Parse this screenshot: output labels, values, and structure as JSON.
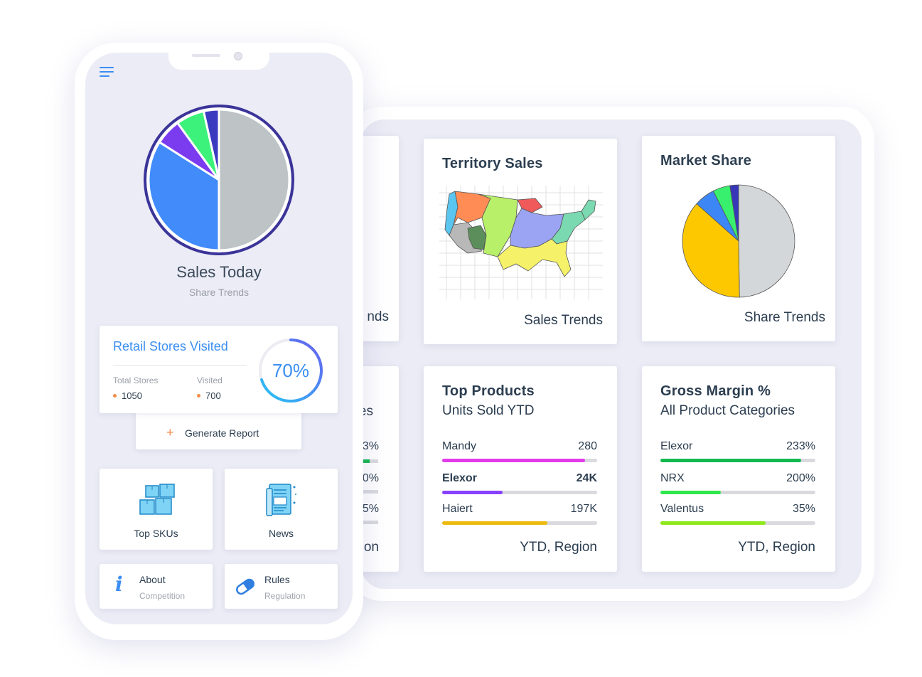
{
  "phone": {
    "title": "Sales Today",
    "subtitle": "Share Trends",
    "pie": [
      {
        "label": "grey",
        "value": 50,
        "color": "#bec3c6"
      },
      {
        "label": "blue",
        "value": 34,
        "color": "#418bfb"
      },
      {
        "label": "purple",
        "value": 6,
        "color": "#7b3cf0"
      },
      {
        "label": "green",
        "value": 6.5,
        "color": "#3cf27a"
      },
      {
        "label": "navy",
        "value": 3.5,
        "color": "#3b3bc0"
      }
    ],
    "pie_ring_color": "#3b3499",
    "retail": {
      "title": "Retail Stores Visited",
      "total_label": "Total Stores",
      "total_value": "1050",
      "visited_label": "Visited",
      "visited_value": "700",
      "percent_text": "70%",
      "percent": 0.7
    },
    "generate_report": "Generate Report",
    "tiles": [
      {
        "label": "Top SKUs",
        "icon": "boxes-icon"
      },
      {
        "label": "News",
        "icon": "newspaper-icon"
      }
    ],
    "links": [
      {
        "title": "About",
        "sub": "Competition",
        "icon": "info-icon"
      },
      {
        "title": "Rules",
        "sub": "Regulation",
        "icon": "pill-icon"
      }
    ]
  },
  "tablet": {
    "partial_left": {
      "top_foot": "nds",
      "bottom_title": "es",
      "bottom_values": [
        "33%",
        "00%",
        "35%"
      ],
      "bottom_foot": "on"
    },
    "territory": {
      "title": "Territory Sales",
      "foot": "Sales Trends"
    },
    "market": {
      "title": "Market Share",
      "foot": "Share Trends",
      "pie": [
        {
          "label": "grey",
          "value": 50,
          "color": "#d4d7d9"
        },
        {
          "label": "yellow",
          "value": 37,
          "color": "#fdc800"
        },
        {
          "label": "blue",
          "value": 6,
          "color": "#3d86f5"
        },
        {
          "label": "green",
          "value": 5,
          "color": "#38f06e"
        },
        {
          "label": "navy",
          "value": 2.5,
          "color": "#3737b8"
        }
      ]
    },
    "products": {
      "title": "Top Products",
      "subtitle": "Units Sold YTD",
      "foot": "YTD, Region",
      "rows": [
        {
          "label": "Mandy",
          "value": "280",
          "fill": 0.92,
          "color": "#e33bea"
        },
        {
          "label": "Elexor",
          "value": "24K",
          "fill": 0.39,
          "color": "#8842ff"
        },
        {
          "label": "Haiert",
          "value": "197K",
          "fill": 0.68,
          "color": "#ecbb10"
        }
      ]
    },
    "margin": {
      "title": "Gross Margin %",
      "subtitle": "All Product Categories",
      "foot": "YTD, Region",
      "rows": [
        {
          "label": "Elexor",
          "value": "233%",
          "fill": 0.91,
          "color": "#12b84e"
        },
        {
          "label": "NRX",
          "value": "200%",
          "fill": 0.39,
          "color": "#2ee84a"
        },
        {
          "label": "Valentus",
          "value": "35%",
          "fill": 0.68,
          "color": "#8fe81b"
        }
      ]
    }
  }
}
